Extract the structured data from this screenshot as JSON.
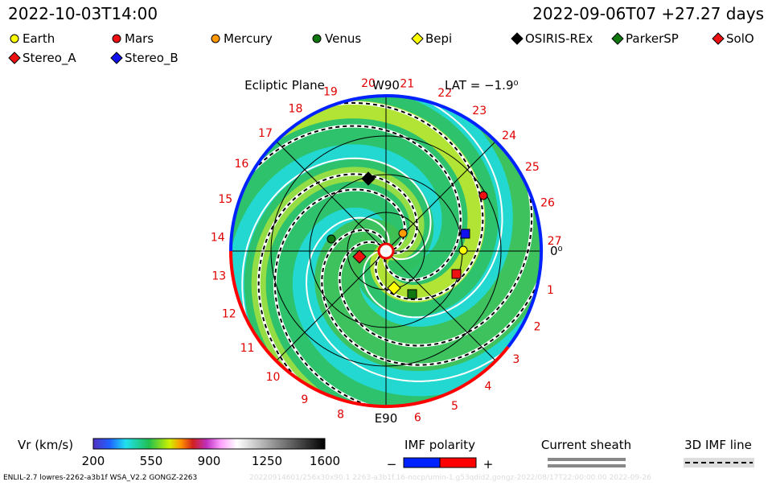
{
  "header": {
    "time": "2022-10-03T14:00",
    "run": "2022-09-06T07 +27.27 days"
  },
  "legend": [
    {
      "label": "Earth",
      "shape": "circle",
      "color": "#ffff00"
    },
    {
      "label": "Mars",
      "shape": "circle",
      "color": "#ee1111"
    },
    {
      "label": "Mercury",
      "shape": "circle",
      "color": "#ff9900"
    },
    {
      "label": "Venus",
      "shape": "circle",
      "color": "#117711"
    },
    {
      "label": "Bepi",
      "shape": "diamond",
      "color": "#ffff00"
    },
    {
      "label": "OSIRIS-REx",
      "shape": "diamond",
      "color": "#000000"
    },
    {
      "label": "ParkerSP",
      "shape": "diamond",
      "color": "#117711"
    },
    {
      "label": "SolO",
      "shape": "diamond",
      "color": "#ee1111"
    },
    {
      "label": "Stereo_A",
      "shape": "diamond",
      "color": "#ee1111"
    },
    {
      "label": "Stereo_B",
      "shape": "diamond",
      "color": "#1111ee"
    }
  ],
  "plot": {
    "title": "Ecliptic Plane",
    "top": "W90",
    "lat": "LAT = −1.9⁰",
    "right": "0⁰",
    "bottom": "E90",
    "carrington": [
      "1",
      "2",
      "3",
      "4",
      "5",
      "6",
      "8",
      "9",
      "10",
      "11",
      "12",
      "13",
      "14",
      "15",
      "16",
      "17",
      "18",
      "19",
      "20",
      "21",
      "22",
      "23",
      "24",
      "25",
      "26",
      "27"
    ]
  },
  "colorbar": {
    "title": "Vr (km/s)",
    "ticks": [
      "200",
      "550",
      "900",
      "1250",
      "1600"
    ]
  },
  "polarity": {
    "title": "IMF polarity",
    "minus": "−",
    "plus": "+"
  },
  "sheath": {
    "title": "Current sheath"
  },
  "imf": {
    "title": "3D IMF line"
  },
  "footer": {
    "left": "ENLIL-2.7 lowres-2262-a3b1f WSA_V2.2 GONGZ-2263",
    "right": "20220914601/256x30x90.1 2263-a3b1f.16-nocp/umin-1.g53qdid2.gongz-2022/08/17T22:00:00.00   2022-09-26"
  }
}
